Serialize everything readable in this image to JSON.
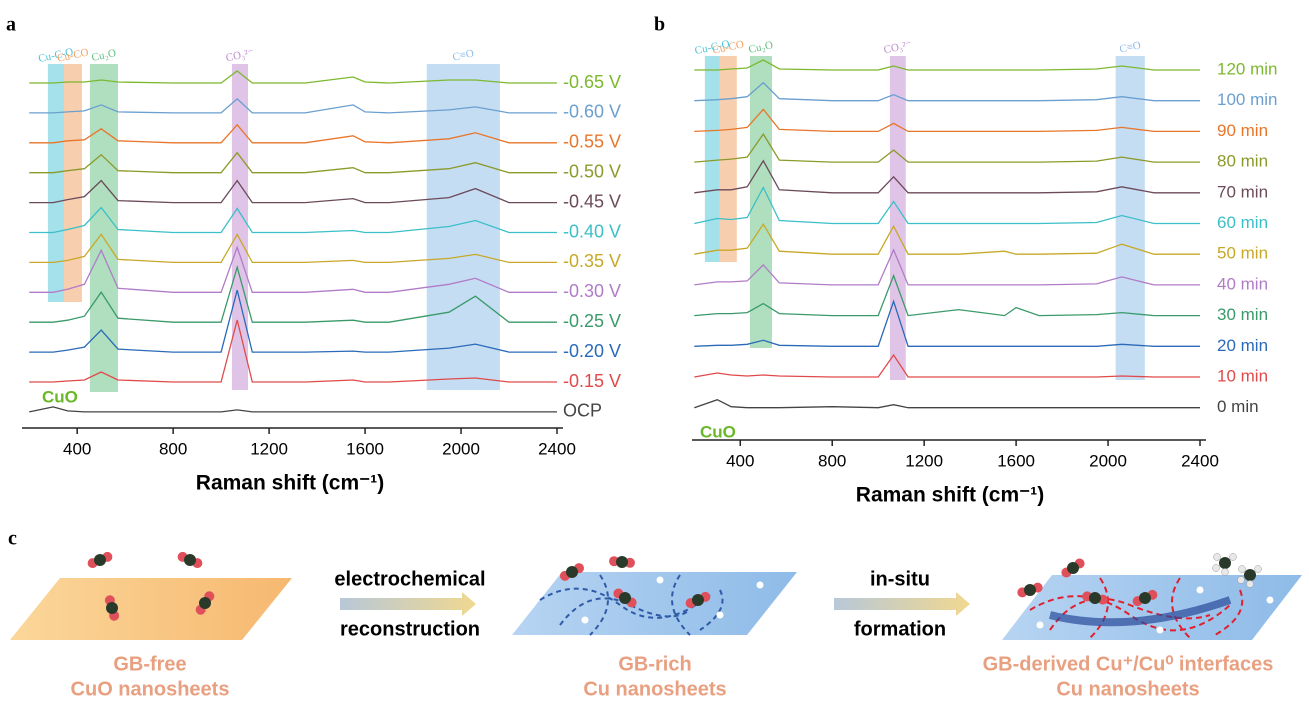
{
  "chart_data": [
    {
      "type": "line",
      "panel": "a",
      "x_label": "Raman shift (cm⁻¹)",
      "annotation": "CuO",
      "x": [
        200,
        300,
        360,
        430,
        500,
        570,
        800,
        1000,
        1067,
        1130,
        1350,
        1550,
        1600,
        1700,
        1950,
        2060,
        2200,
        2400
      ],
      "xlim": [
        170,
        2400
      ],
      "xticks": [
        400,
        800,
        1200,
        1600,
        2000,
        2400
      ],
      "bands": [
        {
          "label": "Cu-C-O",
          "range": [
            278,
            345
          ],
          "color": "#4cc3d6"
        },
        {
          "label": "Cu-CO",
          "range": [
            345,
            420
          ],
          "color": "#f0a060"
        },
        {
          "label": "Cu₂O",
          "range": [
            453,
            570
          ],
          "color": "#5fbf80"
        },
        {
          "label": "CO₃²⁻",
          "range": [
            1045,
            1112
          ],
          "color": "#c08ad0"
        },
        {
          "label": "C≡O",
          "range": [
            1857,
            2162
          ],
          "color": "#8cbce8"
        }
      ],
      "series": [
        {
          "name": "-0.65 V",
          "color": "#7cb82f",
          "values": [
            0,
            0,
            1,
            1,
            3,
            1,
            0,
            0,
            12,
            0,
            0,
            6,
            1,
            0,
            3,
            3,
            0,
            0
          ]
        },
        {
          "name": "-0.60 V",
          "color": "#6a9fcf",
          "values": [
            0,
            0,
            1,
            2,
            8,
            1,
            0,
            0,
            14,
            0,
            0,
            8,
            1,
            0,
            3,
            6,
            0,
            0
          ]
        },
        {
          "name": "-0.55 V",
          "color": "#e8762a",
          "values": [
            0,
            0,
            2,
            3,
            14,
            2,
            0,
            0,
            18,
            0,
            0,
            7,
            1,
            0,
            4,
            10,
            0,
            0
          ]
        },
        {
          "name": "-0.50 V",
          "color": "#8c9a2a",
          "values": [
            0,
            0,
            2,
            4,
            18,
            2,
            0,
            0,
            20,
            0,
            0,
            5,
            0,
            0,
            4,
            10,
            0,
            0
          ]
        },
        {
          "name": "-0.45 V",
          "color": "#6b4a5a",
          "values": [
            0,
            0,
            3,
            6,
            22,
            2,
            0,
            0,
            22,
            0,
            0,
            4,
            0,
            0,
            5,
            14,
            0,
            0
          ]
        },
        {
          "name": "-0.40 V",
          "color": "#3bbfc8",
          "values": [
            0,
            0,
            3,
            7,
            25,
            3,
            0,
            0,
            24,
            0,
            0,
            2,
            0,
            0,
            6,
            12,
            0,
            0
          ]
        },
        {
          "name": "-0.35 V",
          "color": "#c8a828",
          "values": [
            0,
            0,
            2,
            6,
            28,
            3,
            0,
            0,
            28,
            0,
            0,
            2,
            0,
            0,
            4,
            8,
            0,
            0
          ]
        },
        {
          "name": "-0.30 V",
          "color": "#b07cc8",
          "values": [
            0,
            0,
            3,
            8,
            42,
            4,
            0,
            0,
            45,
            0,
            0,
            3,
            0,
            0,
            8,
            14,
            0,
            0
          ]
        },
        {
          "name": "-0.25 V",
          "color": "#3a9a6a",
          "values": [
            0,
            0,
            2,
            6,
            30,
            4,
            0,
            0,
            55,
            0,
            0,
            2,
            0,
            0,
            10,
            26,
            0,
            0
          ]
        },
        {
          "name": "-0.20 V",
          "color": "#2a6ab8",
          "values": [
            0,
            0,
            2,
            5,
            22,
            3,
            0,
            0,
            62,
            0,
            0,
            1,
            0,
            0,
            4,
            8,
            0,
            0
          ]
        },
        {
          "name": "-0.15 V",
          "color": "#e04a4a",
          "values": [
            0,
            0,
            1,
            2,
            10,
            2,
            0,
            0,
            62,
            0,
            0,
            2,
            0,
            0,
            3,
            4,
            0,
            0
          ]
        },
        {
          "name": "OCP",
          "color": "#444444",
          "values": [
            0,
            5,
            1,
            0,
            0,
            0,
            0,
            0,
            2,
            0,
            0,
            0,
            0,
            0,
            0,
            0,
            0,
            0
          ]
        }
      ]
    },
    {
      "type": "line",
      "panel": "b",
      "x_label": "Raman shift (cm⁻¹)",
      "annotation": "CuO",
      "x": [
        200,
        300,
        360,
        430,
        500,
        570,
        800,
        1000,
        1067,
        1130,
        1350,
        1550,
        1600,
        1700,
        1950,
        2060,
        2200,
        2400
      ],
      "xlim": [
        190,
        2400
      ],
      "xticks": [
        400,
        800,
        1200,
        1600,
        2000,
        2400
      ],
      "bands": [
        {
          "label": "Cu-C-O",
          "range": [
            246,
            311
          ],
          "color": "#4cc3d6"
        },
        {
          "label": "Cu-CO",
          "range": [
            311,
            385
          ],
          "color": "#f0a060"
        },
        {
          "label": "Cu₂O",
          "range": [
            442,
            538
          ],
          "color": "#5fbf80"
        },
        {
          "label": "CO₃²⁻",
          "range": [
            1051,
            1120
          ],
          "color": "#c08ad0"
        },
        {
          "label": "C≡O",
          "range": [
            2033,
            2160
          ],
          "color": "#8cbce8"
        }
      ],
      "series": [
        {
          "name": "120 min",
          "color": "#7cb82f",
          "values": [
            0,
            0,
            1,
            2,
            10,
            1,
            0,
            0,
            4,
            0,
            0,
            0,
            0,
            0,
            1,
            4,
            0,
            0
          ]
        },
        {
          "name": "100 min",
          "color": "#6a9fcf",
          "values": [
            0,
            1,
            2,
            4,
            18,
            2,
            0,
            0,
            6,
            0,
            0,
            0,
            0,
            0,
            1,
            4,
            0,
            0
          ]
        },
        {
          "name": "90 min",
          "color": "#e8762a",
          "values": [
            0,
            1,
            2,
            4,
            22,
            2,
            0,
            0,
            8,
            0,
            0,
            0,
            0,
            0,
            1,
            4,
            0,
            0
          ]
        },
        {
          "name": "80 min",
          "color": "#8c9a2a",
          "values": [
            0,
            2,
            3,
            5,
            28,
            2,
            0,
            0,
            12,
            0,
            0,
            0,
            0,
            0,
            1,
            5,
            0,
            0
          ]
        },
        {
          "name": "70 min",
          "color": "#6b4a5a",
          "values": [
            0,
            3,
            3,
            6,
            32,
            3,
            0,
            0,
            16,
            0,
            0,
            0,
            0,
            0,
            1,
            6,
            0,
            0
          ]
        },
        {
          "name": "60 min",
          "color": "#3bbfc8",
          "values": [
            0,
            5,
            4,
            6,
            36,
            3,
            0,
            0,
            22,
            0,
            0,
            0,
            0,
            0,
            1,
            8,
            0,
            0
          ]
        },
        {
          "name": "50 min",
          "color": "#c8a828",
          "values": [
            0,
            4,
            4,
            6,
            30,
            3,
            0,
            0,
            28,
            0,
            0,
            3,
            0,
            0,
            1,
            10,
            0,
            0
          ]
        },
        {
          "name": "40 min",
          "color": "#b07cc8",
          "values": [
            0,
            3,
            3,
            4,
            20,
            2,
            0,
            0,
            35,
            0,
            0,
            0,
            0,
            0,
            1,
            8,
            0,
            0
          ]
        },
        {
          "name": "30 min",
          "color": "#3a9a6a",
          "values": [
            0,
            2,
            2,
            3,
            12,
            2,
            0,
            0,
            40,
            0,
            6,
            0,
            8,
            0,
            1,
            3,
            0,
            0
          ]
        },
        {
          "name": "20 min",
          "color": "#2a6ab8",
          "values": [
            0,
            1,
            1,
            2,
            6,
            1,
            0,
            0,
            45,
            0,
            0,
            0,
            0,
            0,
            0,
            2,
            0,
            0
          ]
        },
        {
          "name": "10 min",
          "color": "#e04a4a",
          "values": [
            0,
            4,
            2,
            1,
            2,
            1,
            0,
            0,
            22,
            0,
            0,
            0,
            0,
            0,
            0,
            1,
            0,
            0
          ]
        },
        {
          "name": "0 min",
          "color": "#444444",
          "values": [
            0,
            8,
            1,
            0,
            0,
            0,
            1,
            0,
            3,
            0,
            0,
            0,
            0,
            0,
            0,
            0,
            0,
            0
          ]
        }
      ]
    }
  ],
  "schematic": {
    "panel": "c",
    "step1": [
      "electrochemical",
      "reconstruction"
    ],
    "step2": [
      "in-situ",
      "formation"
    ],
    "stages": [
      {
        "title": "GB-free",
        "subtitle": "CuO nanosheets"
      },
      {
        "title": "GB-rich",
        "subtitle": "Cu nanosheets"
      },
      {
        "title": "GB-derived Cu⁺/Cu⁰ interfaces",
        "subtitle": "Cu nanosheets"
      }
    ]
  }
}
